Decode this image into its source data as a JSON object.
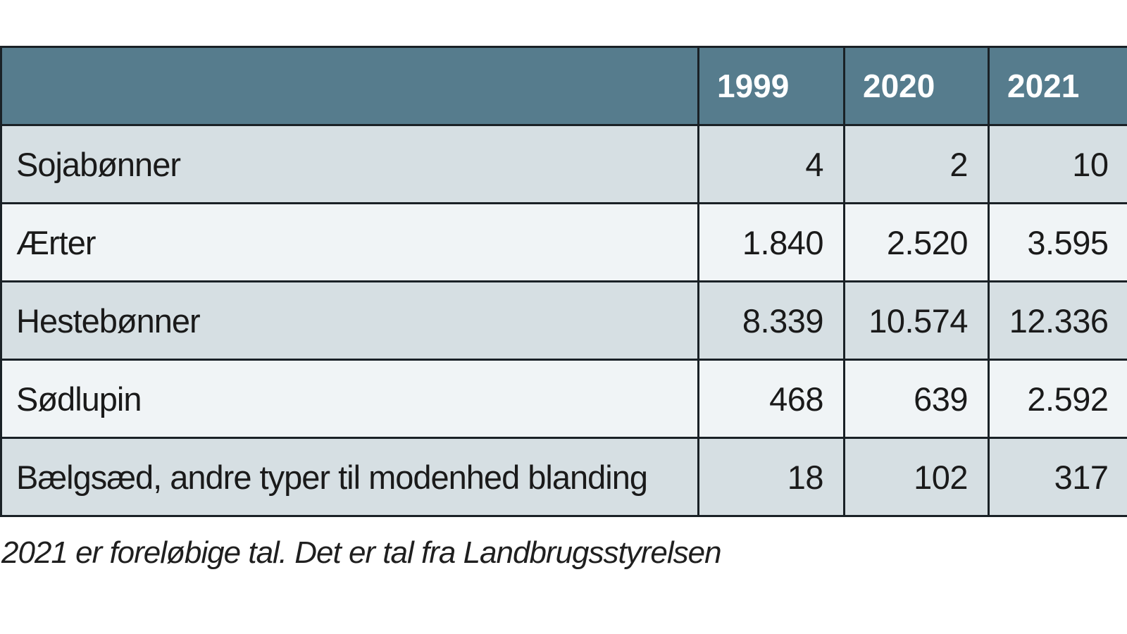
{
  "table": {
    "columns": [
      "1999",
      "2020",
      "2021"
    ],
    "rows": [
      {
        "label": "Sojabønner",
        "values": [
          "4",
          "2",
          "10"
        ]
      },
      {
        "label": "Ærter",
        "values": [
          "1.840",
          "2.520",
          "3.595"
        ]
      },
      {
        "label": "Hestebønner",
        "values": [
          "8.339",
          "10.574",
          "12.336"
        ]
      },
      {
        "label": "Sødlupin",
        "values": [
          "468",
          "639",
          "2.592"
        ]
      },
      {
        "label": "Bælgsæd, andre typer til modenhed blanding",
        "values": [
          "18",
          "102",
          "317"
        ]
      }
    ]
  },
  "footnote": "2021 er foreløbige tal. Det er tal fra Landbrugsstyrelsen",
  "colors": {
    "header_background": "#567c8d",
    "header_text": "#ffffff",
    "row_odd_background": "#d6dfe3",
    "row_even_background": "#f0f4f6",
    "border": "#1a2126",
    "body_text": "#1a1a1a"
  },
  "chart_data": {
    "type": "table",
    "title": "",
    "columns": [
      "1999",
      "2020",
      "2021"
    ],
    "rows": [
      {
        "label": "Sojabønner",
        "values": [
          4,
          2,
          10
        ]
      },
      {
        "label": "Ærter",
        "values": [
          1840,
          2520,
          3595
        ]
      },
      {
        "label": "Hestebønner",
        "values": [
          8339,
          10574,
          12336
        ]
      },
      {
        "label": "Sødlupin",
        "values": [
          468,
          639,
          2592
        ]
      },
      {
        "label": "Bælgsæd, andre typer til modenhed blanding",
        "values": [
          18,
          102,
          317
        ]
      }
    ],
    "note": "2021 er foreløbige tal. Det er tal fra Landbrugsstyrelsen",
    "number_format": "da-DK thousands separator '.'"
  }
}
